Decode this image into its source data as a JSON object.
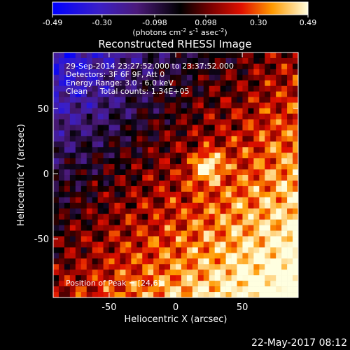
{
  "chart_data": {
    "type": "heatmap",
    "title": "Reconstructed RHESSI Image",
    "xlabel": "Heliocentric X (arcsec)",
    "ylabel": "Heliocentric Y (arcsec)",
    "xlim": [
      -92,
      92
    ],
    "ylim": [
      -95,
      93
    ],
    "x_ticks": [
      -50,
      0,
      50
    ],
    "y_ticks": [
      50,
      0,
      -50
    ],
    "colorbar": {
      "range": [
        -0.49,
        0.49
      ],
      "ticks": [
        "-0.49",
        "-0.30",
        "-0.098",
        "0.098",
        "0.30",
        "0.49"
      ],
      "unit_label": "(photons cm^-2 s^-1 asec^-2)"
    },
    "annotations": [
      "29-Sep-2014 23:27:52.000 to 23:37:52.000",
      "Detectors: 3F 6F 9F, Att 0",
      "Energy Range: 3.0 - 6.0 keV",
      "Clean     Total counts: 1.34E+05"
    ],
    "peak_label": "Position of Peak = [24,6]",
    "peak": [
      24,
      6
    ],
    "peak_value": 0.49,
    "grid": false
  },
  "footer": {
    "date": "22-May-2017 08:12"
  }
}
